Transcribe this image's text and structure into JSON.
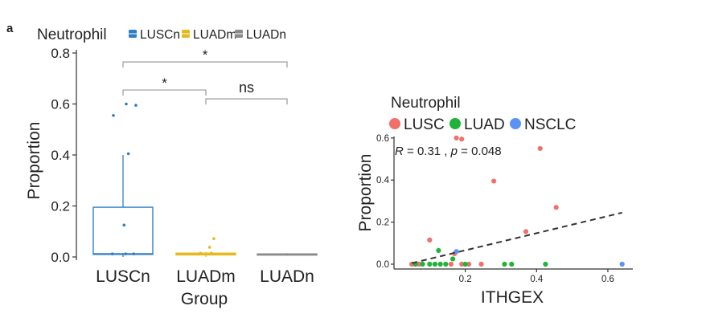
{
  "panel_label": "a",
  "chart_data": [
    {
      "type": "box",
      "legend_title": "Neutrophil",
      "legend": [
        "LUSCn",
        "LUADm",
        "LUADn"
      ],
      "legend_position": "top",
      "xlabel": "Group",
      "ylabel": "Proportion",
      "categories": [
        "LUSCn",
        "LUADm",
        "LUADn"
      ],
      "yticks": [
        "0.0",
        "0.2",
        "0.4",
        "0.6",
        "0.8"
      ],
      "ylim": [
        0,
        0.8
      ],
      "colors": [
        "#2f7fc7",
        "#e6b81e",
        "#8a8a8a"
      ],
      "boxes": [
        {
          "q1": 0.01,
          "median": 0.012,
          "q3": 0.195,
          "whisker_low": 0.0,
          "whisker_high": 0.4
        },
        {
          "q1": 0.008,
          "median": 0.01,
          "q3": 0.015,
          "whisker_low": 0.0,
          "whisker_high": 0.02
        },
        {
          "q1": 0.008,
          "median": 0.01,
          "q3": 0.012,
          "whisker_low": 0.005,
          "whisker_high": 0.015
        }
      ],
      "points": [
        {
          "group": 0,
          "y": 0.555,
          "dx": -0.18
        },
        {
          "group": 0,
          "y": 0.6,
          "dx": 0.06
        },
        {
          "group": 0,
          "y": 0.595,
          "dx": 0.24
        },
        {
          "group": 0,
          "y": 0.405,
          "dx": 0.1
        },
        {
          "group": 0,
          "y": 0.125,
          "dx": 0.02
        },
        {
          "group": 0,
          "y": 0.012,
          "dx": -0.2
        },
        {
          "group": 0,
          "y": 0.012,
          "dx": 0.05
        },
        {
          "group": 0,
          "y": 0.012,
          "dx": 0.2
        },
        {
          "group": 1,
          "y": 0.072,
          "dx": 0.15
        },
        {
          "group": 1,
          "y": 0.038,
          "dx": 0.07
        },
        {
          "group": 1,
          "y": 0.015,
          "dx": -0.1
        },
        {
          "group": 1,
          "y": 0.015,
          "dx": 0.1
        }
      ],
      "comparisons": [
        {
          "from": 0,
          "to": 2,
          "label": "*",
          "y": 0.765
        },
        {
          "from": 0,
          "to": 1,
          "label": "*",
          "y": 0.655
        },
        {
          "from": 1,
          "to": 2,
          "label": "ns",
          "y": 0.62
        }
      ]
    },
    {
      "type": "scatter",
      "legend_title": "Neutrophil",
      "legend": [
        "LUSC",
        "LUAD",
        "NSCLC"
      ],
      "legend_position": "top",
      "colors": [
        "#f0706b",
        "#1fb33a",
        "#5b93f5"
      ],
      "xlabel": "ITHGEX",
      "ylabel": "Proportion",
      "xticks": [
        "0.2",
        "0.4",
        "0.6"
      ],
      "yticks": [
        "0.0",
        "0.2",
        "0.4",
        "0.6"
      ],
      "xlim": [
        0.0,
        0.67
      ],
      "ylim": [
        0,
        0.63
      ],
      "annotation": {
        "r_label": "R",
        "r_text": " = 0.31 , ",
        "p_label": "p",
        "p_text": " = 0.048"
      },
      "trend": {
        "x": [
          0.05,
          0.64
        ],
        "y": [
          0.005,
          0.245
        ]
      },
      "points": [
        {
          "x": 0.175,
          "y": 0.6,
          "s": 0
        },
        {
          "x": 0.19,
          "y": 0.595,
          "s": 0
        },
        {
          "x": 0.41,
          "y": 0.55,
          "s": 0
        },
        {
          "x": 0.28,
          "y": 0.395,
          "s": 0
        },
        {
          "x": 0.455,
          "y": 0.27,
          "s": 0
        },
        {
          "x": 0.37,
          "y": 0.155,
          "s": 0
        },
        {
          "x": 0.1,
          "y": 0.115,
          "s": 0
        },
        {
          "x": 0.17,
          "y": 0.05,
          "s": 0
        },
        {
          "x": 0.05,
          "y": 0.0,
          "s": 0
        },
        {
          "x": 0.07,
          "y": 0.0,
          "s": 0
        },
        {
          "x": 0.16,
          "y": 0.0,
          "s": 0
        },
        {
          "x": 0.19,
          "y": 0.0,
          "s": 0
        },
        {
          "x": 0.21,
          "y": 0.0,
          "s": 0
        },
        {
          "x": 0.245,
          "y": 0.0,
          "s": 0
        },
        {
          "x": 0.125,
          "y": 0.065,
          "s": 1
        },
        {
          "x": 0.165,
          "y": 0.025,
          "s": 1
        },
        {
          "x": 0.06,
          "y": 0.0,
          "s": 1
        },
        {
          "x": 0.08,
          "y": 0.0,
          "s": 1
        },
        {
          "x": 0.1,
          "y": 0.0,
          "s": 1
        },
        {
          "x": 0.115,
          "y": 0.0,
          "s": 1
        },
        {
          "x": 0.13,
          "y": 0.0,
          "s": 1
        },
        {
          "x": 0.145,
          "y": 0.0,
          "s": 1
        },
        {
          "x": 0.2,
          "y": 0.0,
          "s": 1
        },
        {
          "x": 0.31,
          "y": 0.0,
          "s": 1
        },
        {
          "x": 0.33,
          "y": 0.0,
          "s": 1
        },
        {
          "x": 0.425,
          "y": 0.0,
          "s": 1
        },
        {
          "x": 0.175,
          "y": 0.06,
          "s": 2
        },
        {
          "x": 0.64,
          "y": 0.0,
          "s": 2
        }
      ]
    }
  ]
}
